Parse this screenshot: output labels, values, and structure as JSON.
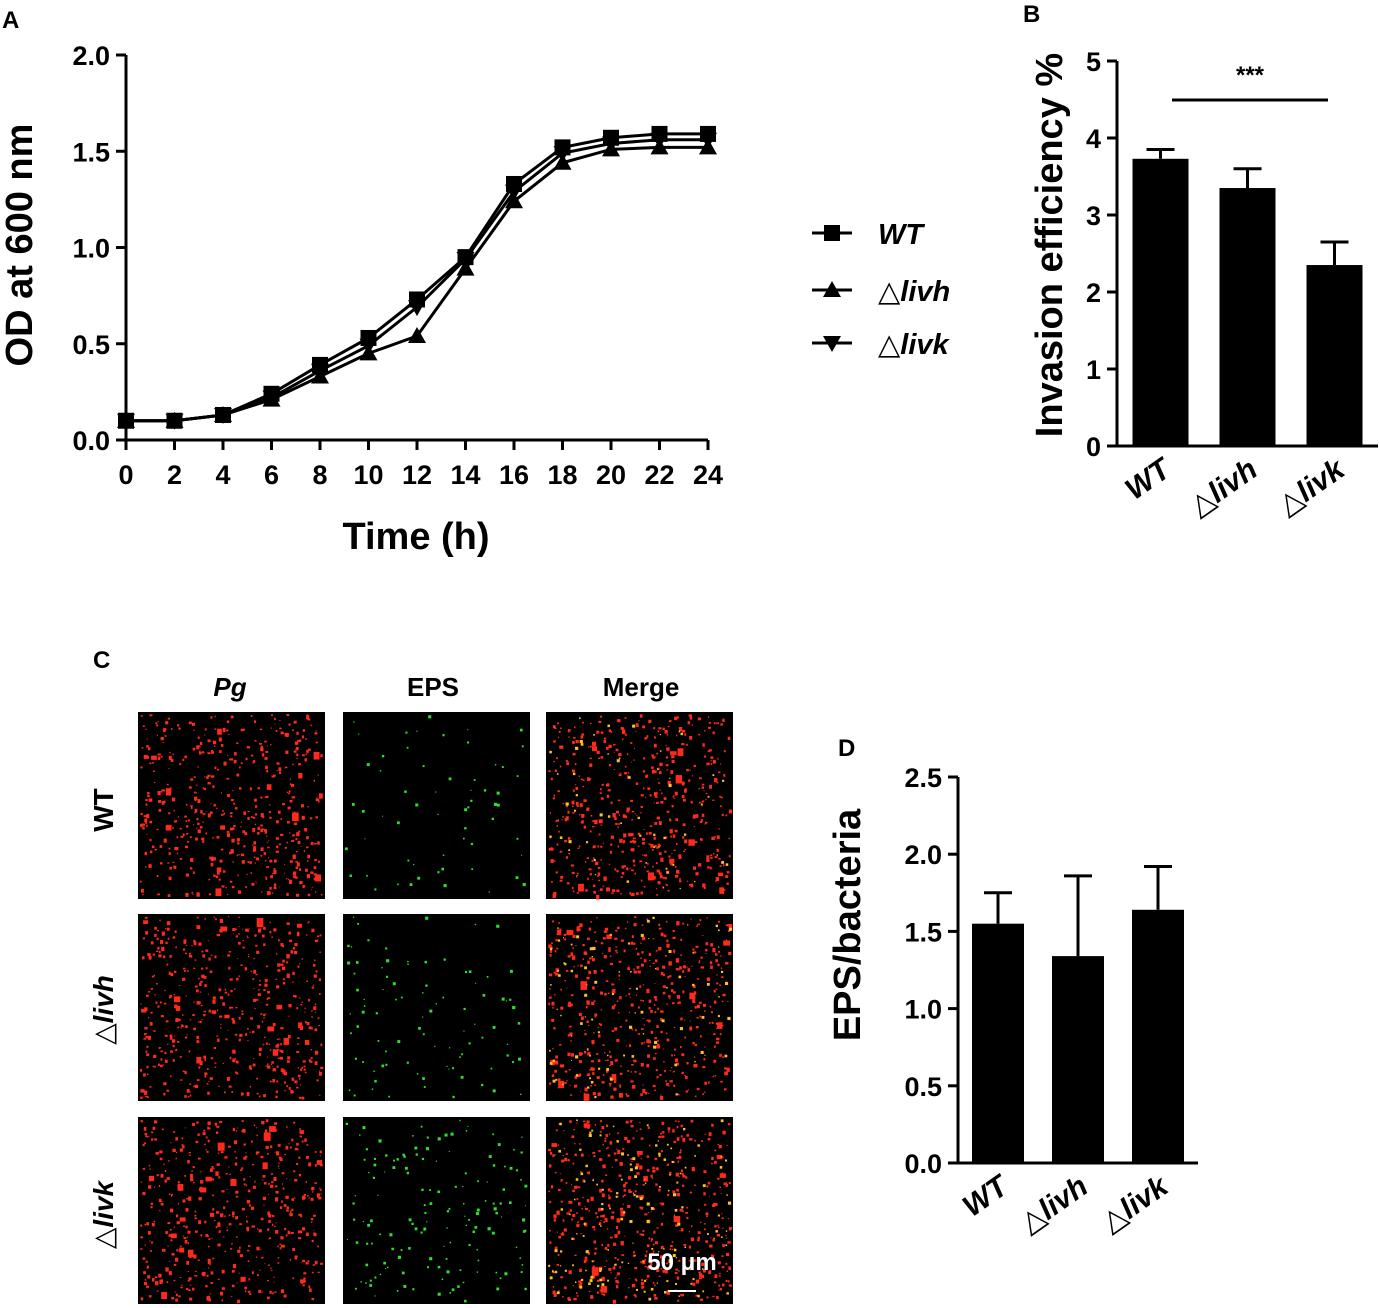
{
  "panels": {
    "a": "A",
    "b": "B",
    "c": "C",
    "d": "D"
  },
  "chart_data": [
    {
      "panel": "A",
      "type": "line",
      "xlabel": "Time (h)",
      "ylabel": "OD at 600 nm",
      "xlim": [
        0,
        24
      ],
      "ylim": [
        0,
        2.0
      ],
      "x_ticks": [
        "0",
        "2",
        "4",
        "6",
        "8",
        "10",
        "12",
        "14",
        "16",
        "18",
        "20",
        "22",
        "24"
      ],
      "y_ticks": [
        "0.0",
        "0.5",
        "1.0",
        "1.5",
        "2.0"
      ],
      "legend_position": "right",
      "x": [
        0,
        2,
        4,
        6,
        8,
        10,
        12,
        14,
        16,
        18,
        20,
        22,
        24
      ],
      "series": [
        {
          "name": "WT",
          "marker": "square",
          "values": [
            0.1,
            0.1,
            0.13,
            0.24,
            0.39,
            0.53,
            0.73,
            0.95,
            1.33,
            1.52,
            1.57,
            1.59,
            1.59
          ]
        },
        {
          "name": "△livh",
          "marker": "triangle-up",
          "values": [
            0.1,
            0.1,
            0.13,
            0.21,
            0.33,
            0.45,
            0.54,
            0.89,
            1.24,
            1.44,
            1.51,
            1.52,
            1.52
          ]
        },
        {
          "name": "△livk",
          "marker": "triangle-down",
          "values": [
            0.1,
            0.1,
            0.13,
            0.22,
            0.36,
            0.49,
            0.69,
            0.94,
            1.29,
            1.49,
            1.54,
            1.56,
            1.56
          ]
        }
      ]
    },
    {
      "panel": "B",
      "type": "bar",
      "ylabel": "Invasion efficiency %",
      "ylim": [
        0,
        5
      ],
      "y_ticks": [
        "0",
        "1",
        "2",
        "3",
        "4",
        "5"
      ],
      "categories": [
        "WT",
        "△livh",
        "△livk"
      ],
      "values": [
        3.73,
        3.35,
        2.35
      ],
      "errors": [
        0.12,
        0.25,
        0.3
      ],
      "significance": {
        "label": "***",
        "from": "WT",
        "to": "△livk"
      }
    },
    {
      "panel": "D",
      "type": "bar",
      "ylabel": "EPS/bacteria",
      "ylim": [
        0,
        2.5
      ],
      "y_ticks": [
        "0.0",
        "0.5",
        "1.0",
        "1.5",
        "2.0",
        "2.5"
      ],
      "categories": [
        "WT",
        "△livh",
        "△livk"
      ],
      "values": [
        1.55,
        1.34,
        1.64
      ],
      "errors": [
        0.2,
        0.52,
        0.28
      ]
    }
  ],
  "micrographs": {
    "columns": [
      "Pg",
      "EPS",
      "Merge"
    ],
    "rows": [
      "WT",
      "△livh",
      "△livk"
    ],
    "scale_bar": "50 μm",
    "colors": {
      "pg": "#ff2a1a",
      "eps": "#2ee02e",
      "merge_overlap": "#ffc020",
      "background": "#000000"
    }
  }
}
